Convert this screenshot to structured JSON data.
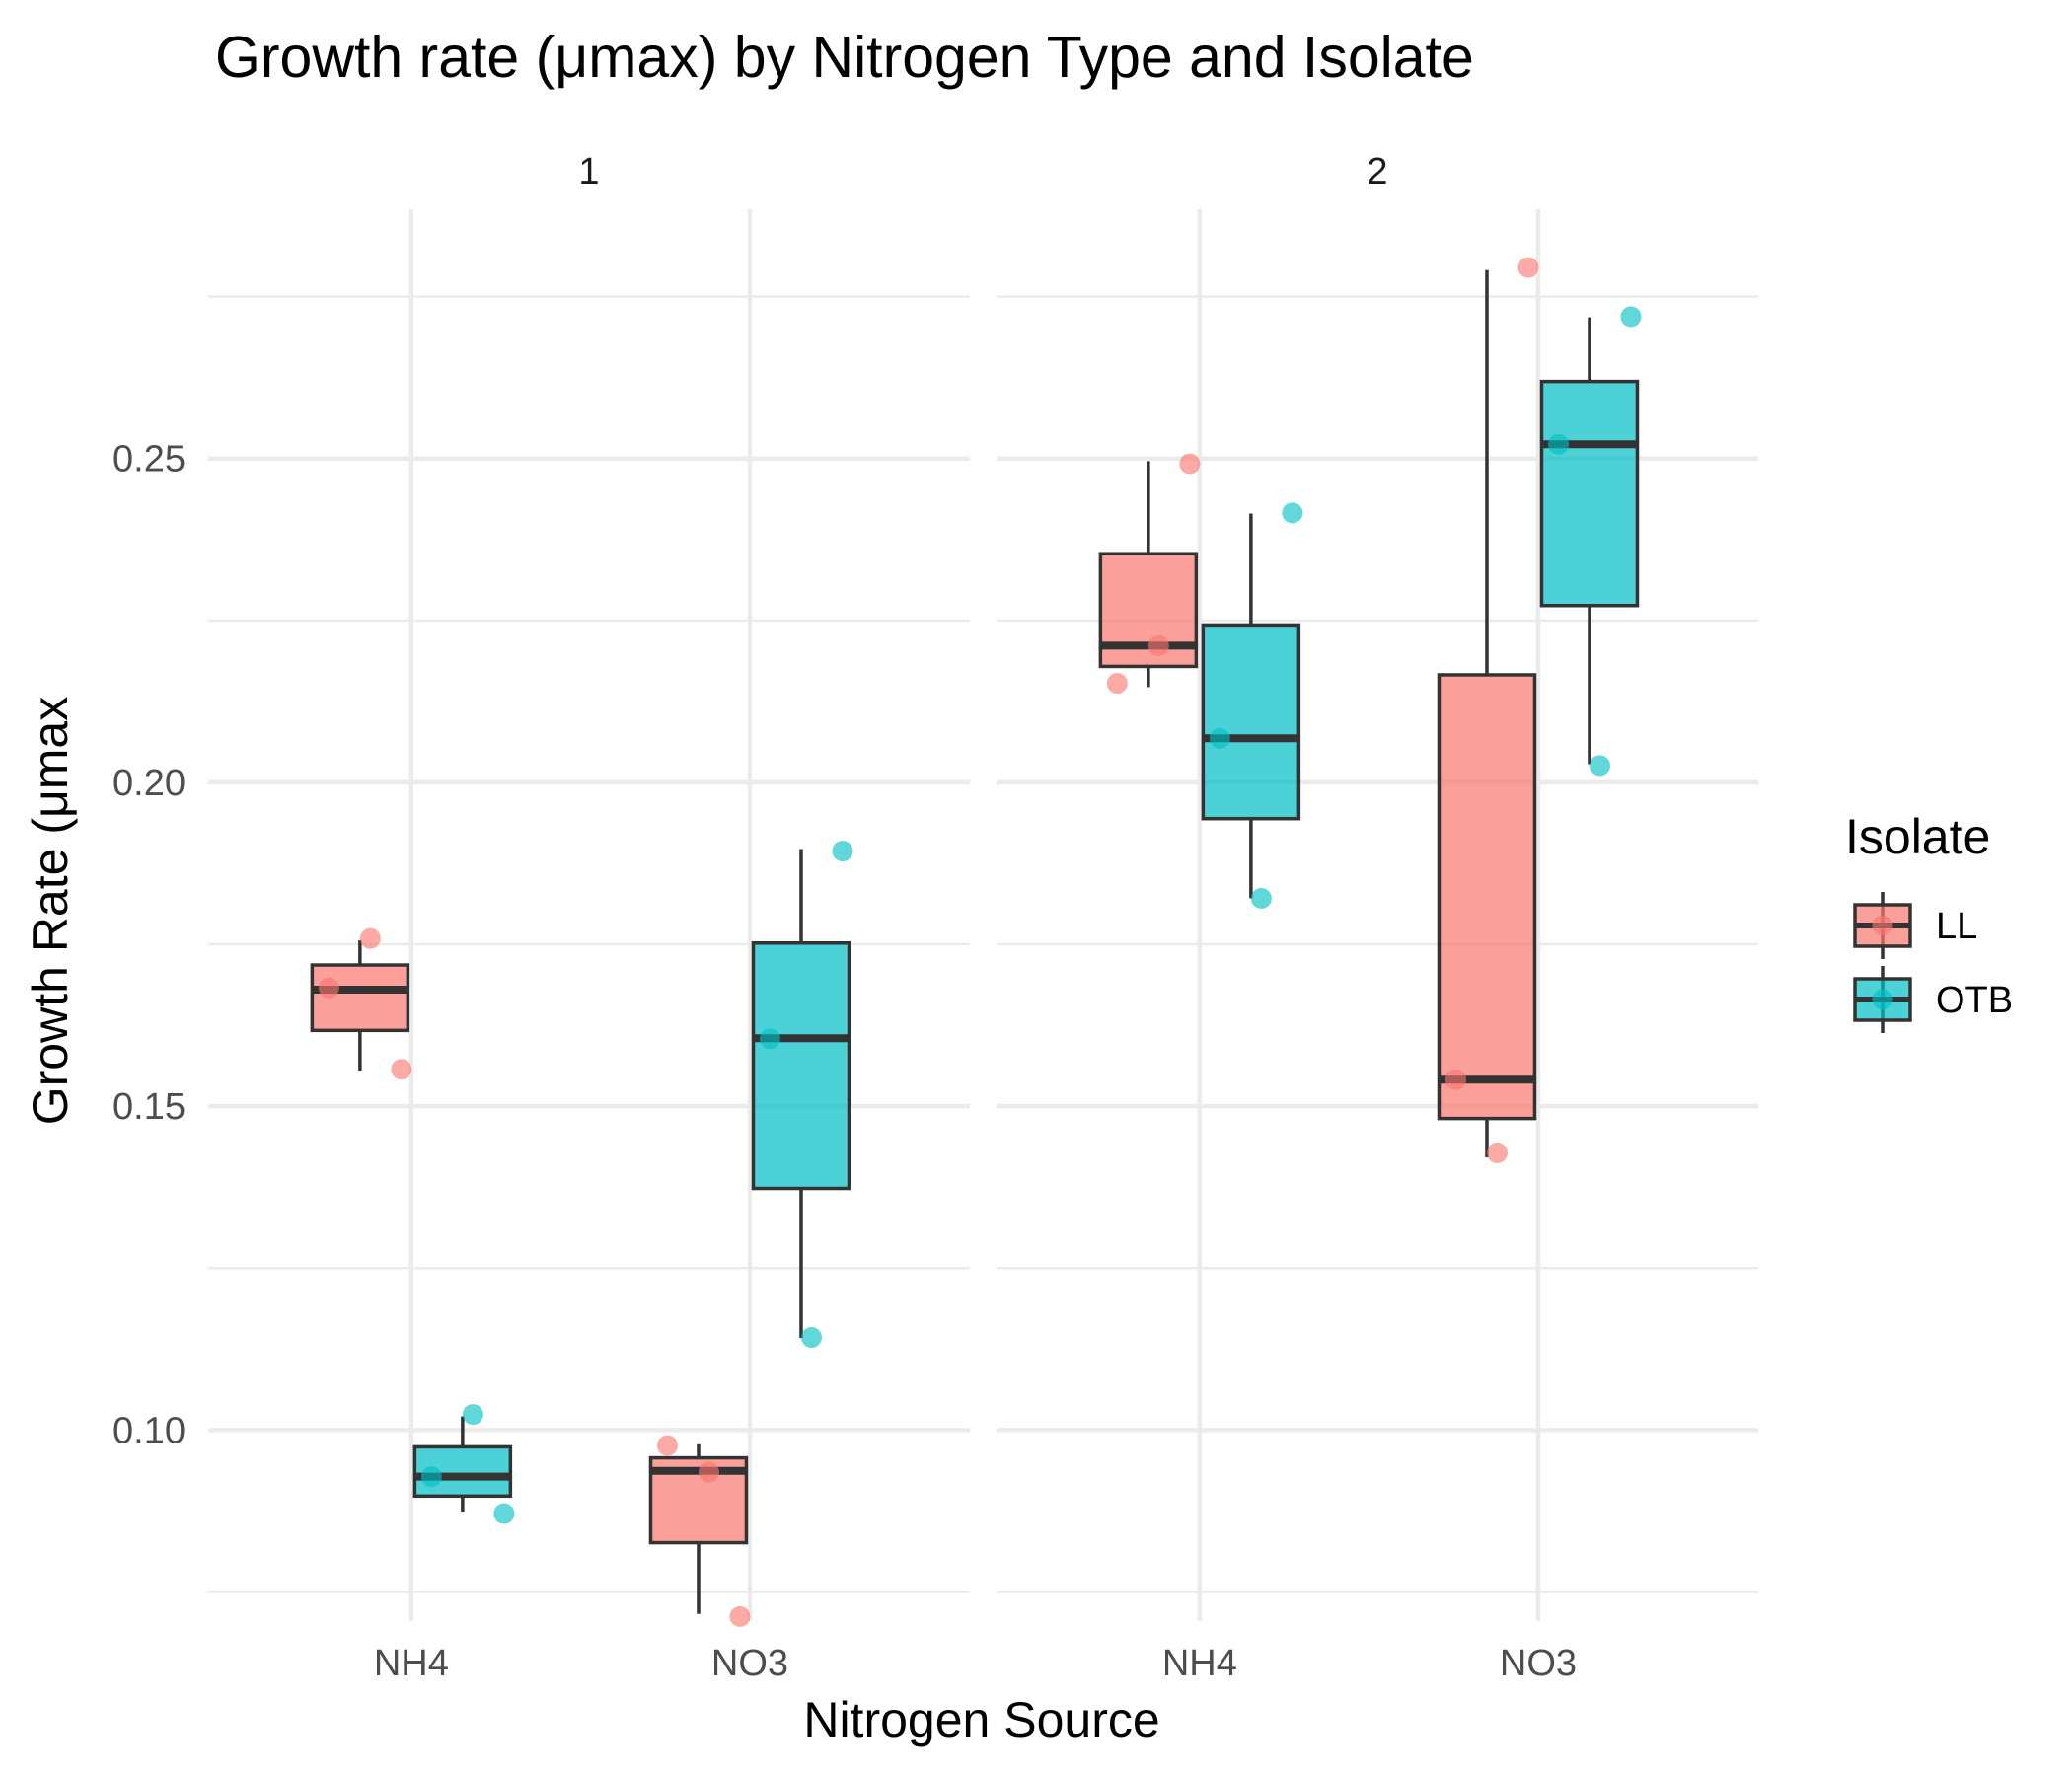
{
  "chart_data": {
    "type": "boxplot",
    "title": "Growth rate (μmax) by Nitrogen Type and Isolate",
    "xlabel": "Nitrogen Source",
    "ylabel": "Growth Rate (μmax",
    "categories": [
      "NH4",
      "NO3"
    ],
    "ylim": [
      0.0705,
      0.2885
    ],
    "yticks": [
      0.1,
      0.15,
      0.2,
      0.25
    ],
    "ytick_labels": [
      "0.10",
      "0.15",
      "0.20",
      "0.25"
    ],
    "grid": true,
    "legend": {
      "title": "Isolate",
      "position": "right",
      "entries": [
        {
          "label": "LL",
          "color": "#F8766D"
        },
        {
          "label": "OTB",
          "color": "#00BFC4"
        }
      ]
    },
    "panels": [
      {
        "label": "1",
        "groups": [
          {
            "category": "NH4",
            "isolate": "LL",
            "min": 0.1555,
            "q1": 0.1617,
            "median": 0.168,
            "q3": 0.1718,
            "max": 0.1756,
            "points": [
              0.1683,
              0.1759,
              0.1557
            ]
          },
          {
            "category": "NH4",
            "isolate": "OTB",
            "min": 0.0874,
            "q1": 0.0898,
            "median": 0.0928,
            "q3": 0.0974,
            "max": 0.1021,
            "points": [
              0.0928,
              0.1024,
              0.0871
            ]
          },
          {
            "category": "NO3",
            "isolate": "LL",
            "min": 0.0716,
            "q1": 0.0826,
            "median": 0.0937,
            "q3": 0.0957,
            "max": 0.0978,
            "points": [
              0.0976,
              0.0935,
              0.0712
            ]
          },
          {
            "category": "NO3",
            "isolate": "OTB",
            "min": 0.1142,
            "q1": 0.1373,
            "median": 0.1605,
            "q3": 0.1752,
            "max": 0.1897,
            "points": [
              0.1604,
              0.1143,
              0.1894
            ]
          }
        ]
      },
      {
        "label": "2",
        "groups": [
          {
            "category": "NH4",
            "isolate": "LL",
            "min": 0.2147,
            "q1": 0.2179,
            "median": 0.2211,
            "q3": 0.2353,
            "max": 0.2496,
            "points": [
              0.2153,
              0.2211,
              0.2492
            ]
          },
          {
            "category": "NH4",
            "isolate": "OTB",
            "min": 0.1821,
            "q1": 0.1944,
            "median": 0.2068,
            "q3": 0.2243,
            "max": 0.2415,
            "points": [
              0.2068,
              0.1821,
              0.2416
            ]
          },
          {
            "category": "NO3",
            "isolate": "LL",
            "min": 0.1421,
            "q1": 0.1481,
            "median": 0.1541,
            "q3": 0.2166,
            "max": 0.2791,
            "points": [
              0.1541,
              0.1428,
              0.2795
            ]
          },
          {
            "category": "NO3",
            "isolate": "OTB",
            "min": 0.2028,
            "q1": 0.2273,
            "median": 0.2522,
            "q3": 0.2619,
            "max": 0.2718,
            "points": [
              0.2522,
              0.2026,
              0.2719
            ]
          }
        ]
      }
    ]
  }
}
